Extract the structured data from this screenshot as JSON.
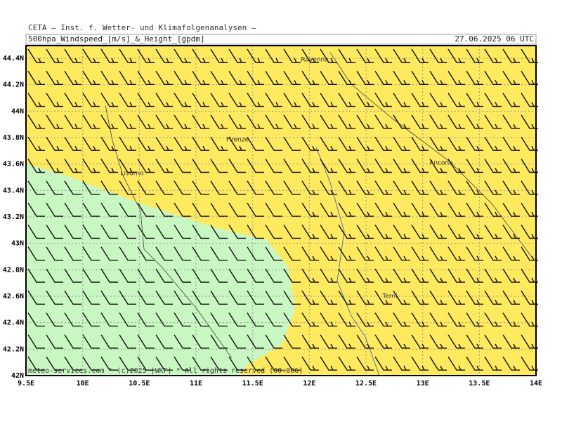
{
  "header": {
    "title": "CETA — Inst. f. Wetter- und Klimafolgenanalysen —",
    "product": "500hpa_Windspeed_[m/s]_&_Height_[gpdm]",
    "datetime": "27.06.2025 06 UTC"
  },
  "map": {
    "xticks": [
      {
        "value": 9.5,
        "label": "9.5E"
      },
      {
        "value": 10,
        "label": "10E"
      },
      {
        "value": 10.5,
        "label": "10.5E"
      },
      {
        "value": 11,
        "label": "11E"
      },
      {
        "value": 11.5,
        "label": "11.5E"
      },
      {
        "value": 12,
        "label": "12E"
      },
      {
        "value": 12.5,
        "label": "12.5E"
      },
      {
        "value": 13,
        "label": "13E"
      },
      {
        "value": 13.5,
        "label": "13.5E"
      },
      {
        "value": 14,
        "label": "14E"
      }
    ],
    "yticks": [
      {
        "value": 42,
        "label": "42N"
      },
      {
        "value": 42.2,
        "label": "42.2N"
      },
      {
        "value": 42.4,
        "label": "42.4N"
      },
      {
        "value": 42.6,
        "label": "42.6N"
      },
      {
        "value": 42.8,
        "label": "42.8N"
      },
      {
        "value": 43,
        "label": "43N"
      },
      {
        "value": 43.2,
        "label": "43.2N"
      },
      {
        "value": 43.4,
        "label": "43.4N"
      },
      {
        "value": 43.6,
        "label": "43.6N"
      },
      {
        "value": 43.8,
        "label": "43.8N"
      },
      {
        "value": 44,
        "label": "44N"
      },
      {
        "value": 44.2,
        "label": "44.2N"
      },
      {
        "value": 44.4,
        "label": "44.4N"
      }
    ],
    "cities": [
      "Ravenna",
      "Firenze",
      "Livorno",
      "Ancona",
      "Terni"
    ],
    "footer": "meteo-services.com * (c)2025 |WKF| * All rights reserved (00+006)"
  }
}
